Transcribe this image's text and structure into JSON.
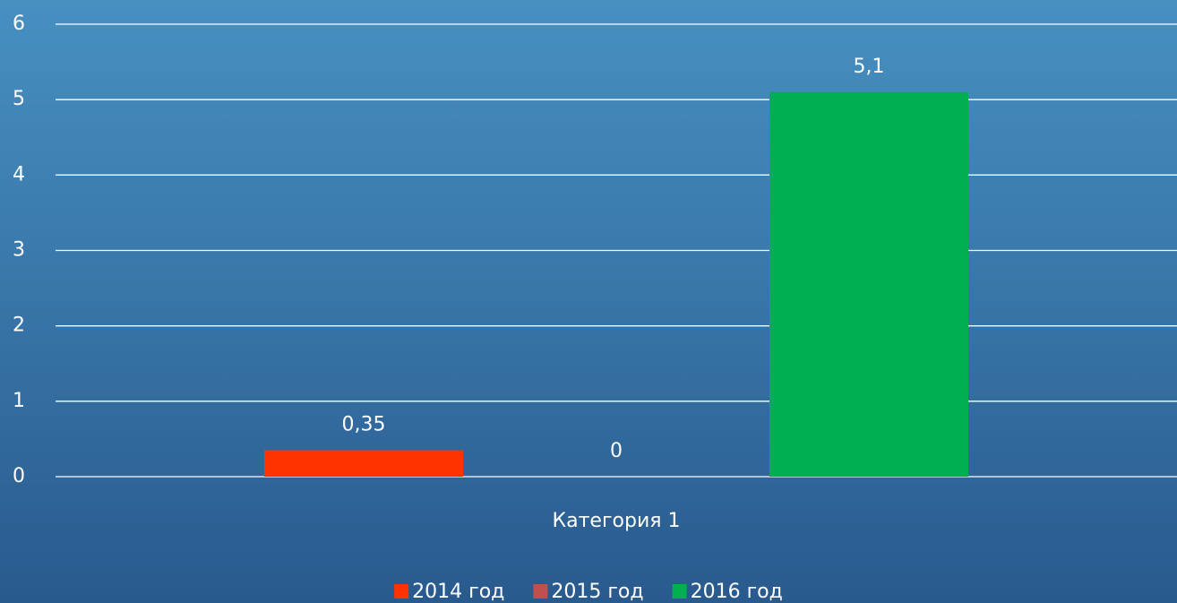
{
  "chart_data": {
    "type": "bar",
    "categories": [
      "Категория 1"
    ],
    "series": [
      {
        "name": "2014 год",
        "color": "#ff3300",
        "values": [
          0.35
        ],
        "value_labels": [
          "0,35"
        ]
      },
      {
        "name": "2015 год",
        "color": "#c0504d",
        "values": [
          0
        ],
        "value_labels": [
          "0"
        ]
      },
      {
        "name": "2016 год",
        "color": "#00b050",
        "values": [
          5.1
        ],
        "value_labels": [
          "5,1"
        ]
      }
    ],
    "ylim": [
      0,
      6
    ],
    "yticks": [
      0,
      1,
      2,
      3,
      4,
      5,
      6
    ],
    "grid": true,
    "legend": "bottom"
  }
}
